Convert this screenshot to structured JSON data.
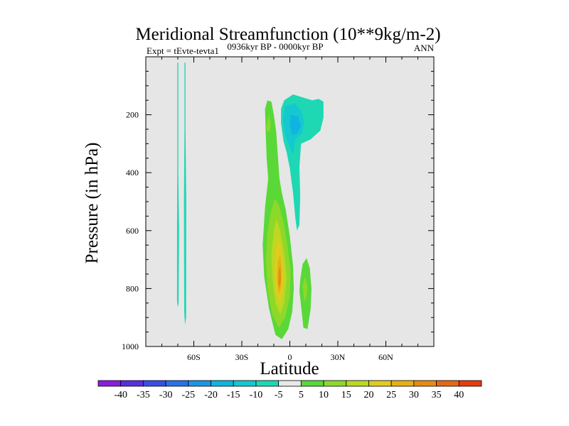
{
  "chart_data": {
    "type": "heatmap",
    "title": "Meridional Streamfunction (10**9kg/m-2)",
    "subtitle_left": "Expt = tEvte-tevta1",
    "subtitle_center": "0936kyr BP - 0000kyr BP",
    "subtitle_right": "ANN",
    "xlabel": "Latitude",
    "ylabel": "Pressure (in hPa)",
    "xlim": [
      -90,
      90
    ],
    "ylim": [
      1000,
      0
    ],
    "x_ticks": [
      {
        "value": -60,
        "label": "60S"
      },
      {
        "value": -30,
        "label": "30S"
      },
      {
        "value": 0,
        "label": "0"
      },
      {
        "value": 30,
        "label": "30N"
      },
      {
        "value": 60,
        "label": "60N"
      }
    ],
    "y_ticks": [
      {
        "value": 200,
        "label": "200"
      },
      {
        "value": 400,
        "label": "400"
      },
      {
        "value": 600,
        "label": "600"
      },
      {
        "value": 800,
        "label": "800"
      },
      {
        "value": 1000,
        "label": "1000"
      }
    ],
    "plot_background": "#e6e6e6",
    "colorbar": {
      "labels": [
        "-40",
        "-35",
        "-30",
        "-25",
        "-20",
        "-15",
        "-10",
        "-5",
        "5",
        "10",
        "15",
        "20",
        "25",
        "30",
        "35",
        "40"
      ],
      "colors": [
        "#8a1ee0",
        "#5a2ee0",
        "#3a4ee6",
        "#2a72e8",
        "#1a96e6",
        "#10b4e0",
        "#14c8d0",
        "#1ed8b4",
        "#e8e8e8",
        "#5ad838",
        "#8ed82a",
        "#bcd822",
        "#e0cc1e",
        "#e6b018",
        "#e68c14",
        "#e66814",
        "#e63c12"
      ]
    },
    "contours": [
      {
        "name": "narrow-negative-band-a",
        "color": "#1ed8b4",
        "points": [
          [
            -70.3,
            20
          ],
          [
            -69.7,
            20
          ],
          [
            -69.7,
            400
          ],
          [
            -69.2,
            600
          ],
          [
            -69.5,
            850
          ],
          [
            -70.0,
            865
          ],
          [
            -70.5,
            840
          ],
          [
            -70.5,
            600
          ],
          [
            -70.3,
            400
          ]
        ]
      },
      {
        "name": "narrow-negative-band-b",
        "color": "#1ed8b4",
        "points": [
          [
            -65.8,
            20
          ],
          [
            -65.2,
            20
          ],
          [
            -65.2,
            250
          ],
          [
            -64.7,
            500
          ],
          [
            -64.8,
            900
          ],
          [
            -65.5,
            925
          ],
          [
            -66.0,
            880
          ],
          [
            -66.2,
            500
          ],
          [
            -65.8,
            250
          ]
        ]
      },
      {
        "name": "north-plume-level-5",
        "color": "#1ed8b4",
        "points": [
          [
            -5.5,
            180
          ],
          [
            -3.5,
            150
          ],
          [
            2,
            130
          ],
          [
            8,
            140
          ],
          [
            14,
            150
          ],
          [
            18,
            145
          ],
          [
            21,
            155
          ],
          [
            21,
            210
          ],
          [
            19,
            255
          ],
          [
            13,
            285
          ],
          [
            7,
            300
          ],
          [
            6,
            380
          ],
          [
            6.5,
            480
          ],
          [
            6,
            580
          ],
          [
            4.5,
            600
          ],
          [
            3.5,
            560
          ],
          [
            2,
            470
          ],
          [
            0,
            385
          ],
          [
            -2,
            330
          ],
          [
            -4,
            290
          ],
          [
            -5.5,
            230
          ]
        ]
      },
      {
        "name": "north-plume-level-10",
        "color": "#14c8d0",
        "points": [
          [
            -4.5,
            215
          ],
          [
            -3,
            170
          ],
          [
            3,
            160
          ],
          [
            7,
            185
          ],
          [
            9,
            225
          ],
          [
            7.5,
            265
          ],
          [
            3.5,
            285
          ],
          [
            2,
            340
          ],
          [
            0,
            310
          ],
          [
            -3,
            270
          ]
        ]
      },
      {
        "name": "north-plume-level-15",
        "color": "#10b4e0",
        "points": [
          [
            0.5,
            200
          ],
          [
            5,
            205
          ],
          [
            7,
            240
          ],
          [
            4.5,
            265
          ],
          [
            1.5,
            270
          ],
          [
            0,
            240
          ]
        ]
      },
      {
        "name": "south-column-level-5",
        "color": "#5ad838",
        "points": [
          [
            -15,
            280
          ],
          [
            -15.5,
            180
          ],
          [
            -14,
            150
          ],
          [
            -11.5,
            155
          ],
          [
            -10,
            200
          ],
          [
            -8.5,
            260
          ],
          [
            -7.5,
            340
          ],
          [
            -6.5,
            420
          ],
          [
            -5,
            470
          ],
          [
            -2.5,
            530
          ],
          [
            0,
            620
          ],
          [
            2,
            720
          ],
          [
            2.5,
            800
          ],
          [
            1.5,
            880
          ],
          [
            -1,
            940
          ],
          [
            -5,
            975
          ],
          [
            -9,
            960
          ],
          [
            -13,
            870
          ],
          [
            -16,
            760
          ],
          [
            -17,
            650
          ],
          [
            -15.5,
            520
          ],
          [
            -13.5,
            420
          ],
          [
            -14.5,
            350
          ]
        ]
      },
      {
        "name": "south-column-level-10",
        "color": "#8ed82a",
        "points": [
          [
            -14.5,
            235
          ],
          [
            -13,
            200
          ],
          [
            -12,
            240
          ],
          [
            -13,
            260
          ],
          [
            -14.5,
            255
          ]
        ]
      },
      {
        "name": "south-core-level-10",
        "color": "#8ed82a",
        "points": [
          [
            -12,
            540
          ],
          [
            -9.5,
            490
          ],
          [
            -7,
            510
          ],
          [
            -4,
            570
          ],
          [
            -1.5,
            650
          ],
          [
            0.5,
            740
          ],
          [
            0,
            830
          ],
          [
            -3,
            900
          ],
          [
            -7,
            935
          ],
          [
            -11,
            890
          ],
          [
            -14,
            800
          ],
          [
            -15,
            700
          ],
          [
            -14,
            610
          ]
        ]
      },
      {
        "name": "south-core-level-15",
        "color": "#bcd822",
        "points": [
          [
            -10,
            600
          ],
          [
            -8.5,
            560
          ],
          [
            -6,
            600
          ],
          [
            -3.5,
            680
          ],
          [
            -2,
            760
          ],
          [
            -3.5,
            850
          ],
          [
            -6,
            890
          ],
          [
            -9,
            850
          ],
          [
            -11,
            760
          ],
          [
            -11.5,
            680
          ]
        ]
      },
      {
        "name": "south-core-level-20",
        "color": "#e0cc1e",
        "points": [
          [
            -8.5,
            660
          ],
          [
            -7,
            620
          ],
          [
            -5,
            680
          ],
          [
            -4,
            760
          ],
          [
            -5,
            830
          ],
          [
            -7,
            850
          ],
          [
            -9,
            800
          ],
          [
            -9.5,
            720
          ]
        ]
      },
      {
        "name": "south-core-level-25",
        "color": "#e6b018",
        "points": [
          [
            -7.5,
            710
          ],
          [
            -6,
            680
          ],
          [
            -5,
            740
          ],
          [
            -5.5,
            800
          ],
          [
            -7,
            820
          ],
          [
            -8,
            770
          ]
        ]
      },
      {
        "name": "south-core-level-30",
        "color": "#e68c14",
        "points": [
          [
            -7,
            740
          ],
          [
            -6,
            720
          ],
          [
            -5.5,
            770
          ],
          [
            -6.5,
            800
          ],
          [
            -7.3,
            780
          ]
        ]
      },
      {
        "name": "east-lobe-level-5",
        "color": "#5ad838",
        "points": [
          [
            6.5,
            770
          ],
          [
            8,
            715
          ],
          [
            10.5,
            695
          ],
          [
            12.5,
            730
          ],
          [
            13.5,
            800
          ],
          [
            13,
            870
          ],
          [
            11,
            940
          ],
          [
            8.5,
            935
          ],
          [
            7,
            860
          ],
          [
            6,
            810
          ]
        ]
      },
      {
        "name": "east-lobe-level-10",
        "color": "#8ed82a",
        "points": [
          [
            8,
            790
          ],
          [
            9.5,
            760
          ],
          [
            11,
            790
          ],
          [
            10.5,
            830
          ],
          [
            9,
            845
          ]
        ]
      }
    ]
  }
}
